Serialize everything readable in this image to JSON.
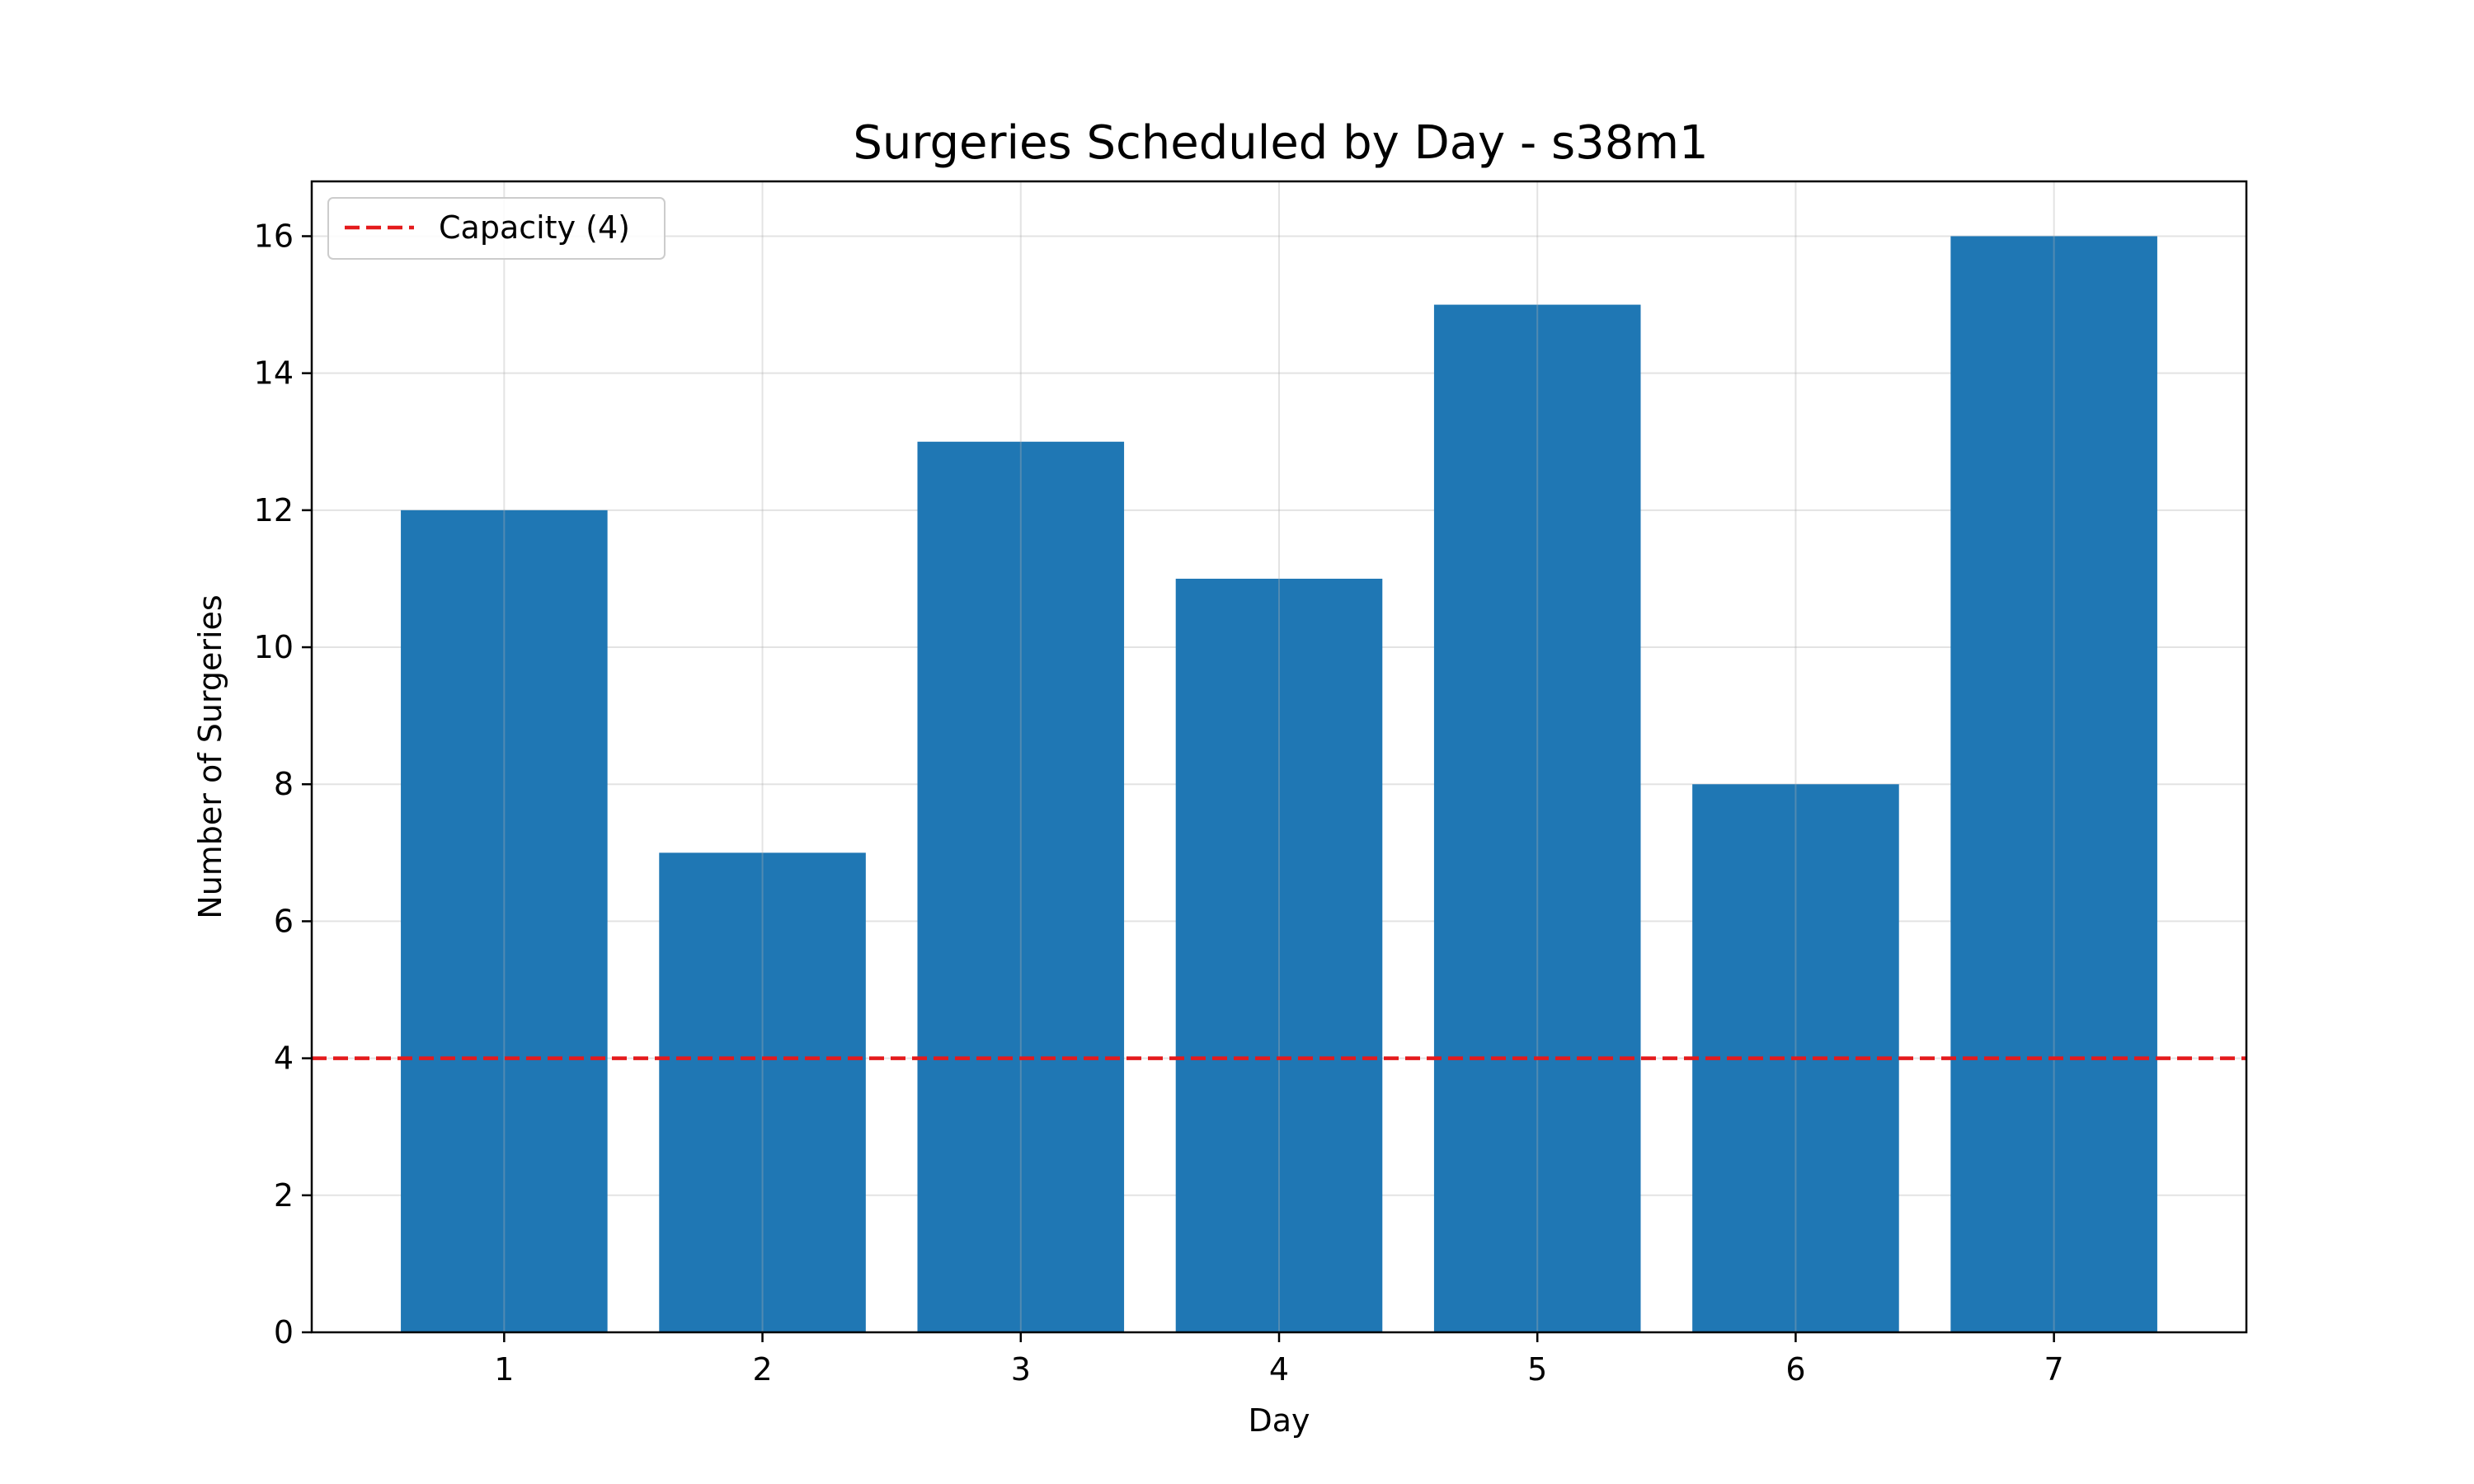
{
  "chart_data": {
    "type": "bar",
    "title": "Surgeries Scheduled by Day - s38m1",
    "xlabel": "Day",
    "ylabel": "Number of Surgeries",
    "categories": [
      "1",
      "2",
      "3",
      "4",
      "5",
      "6",
      "7"
    ],
    "values": [
      12,
      7,
      13,
      11,
      15,
      8,
      16
    ],
    "ylim": [
      0,
      16.8
    ],
    "yticks": [
      0,
      2,
      4,
      6,
      8,
      10,
      12,
      14,
      16
    ],
    "grid": true,
    "bar_color": "#1f77b4",
    "reference_line": {
      "label": "Capacity (4)",
      "value": 4,
      "color": "#e41a1c",
      "style": "dashed"
    },
    "legend": {
      "placement": "upper-left"
    }
  }
}
